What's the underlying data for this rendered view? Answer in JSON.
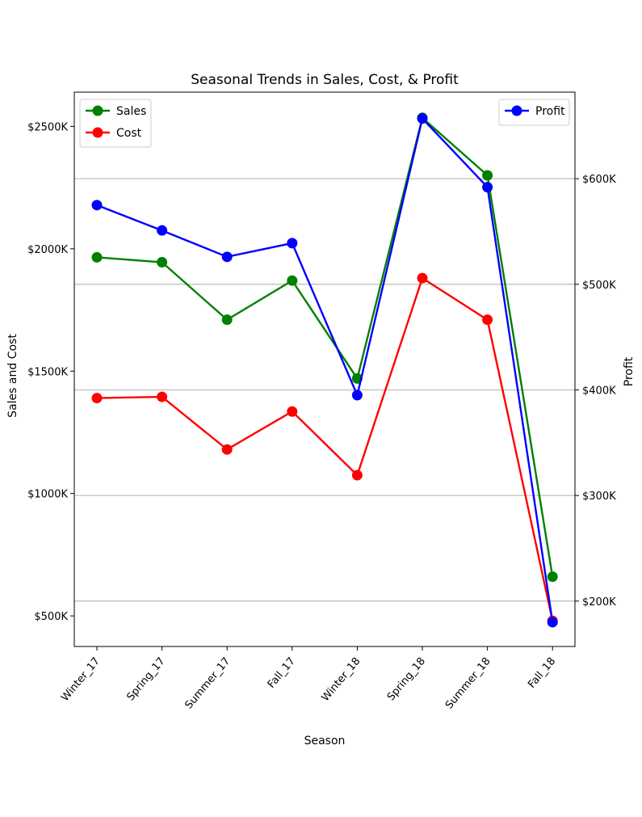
{
  "chart_data": {
    "type": "line",
    "title": "Seasonal Trends in Sales, Cost, & Profit",
    "xlabel": "Season",
    "ylabel_left": "Sales and Cost",
    "ylabel_right": "Profit",
    "categories": [
      "Winter_17",
      "Spring_17",
      "Summer_17",
      "Fall_17",
      "Winter_18",
      "Spring_18",
      "Summer_18",
      "Fall_18"
    ],
    "left_axis": {
      "ylim": [
        375,
        2640
      ],
      "ticks": [
        500,
        1000,
        1500,
        2000,
        2500
      ],
      "tick_labels": [
        "$500K",
        "$1000K",
        "$1500K",
        "$2000K",
        "$2500K"
      ],
      "unit": "thousands of dollars"
    },
    "right_axis": {
      "ylim": [
        157,
        682
      ],
      "ticks": [
        200,
        300,
        400,
        500,
        600
      ],
      "tick_labels": [
        "$200K",
        "$300K",
        "$400K",
        "$500K",
        "$600K"
      ],
      "unit": "thousands of dollars",
      "grid": true
    },
    "series": [
      {
        "name": "Sales",
        "axis": "left",
        "color": "#008000",
        "values": [
          1965,
          1945,
          1710,
          1870,
          1470,
          2535,
          2300,
          660
        ]
      },
      {
        "name": "Cost",
        "axis": "left",
        "color": "#ff0000",
        "values": [
          1390,
          1395,
          1180,
          1335,
          1075,
          1880,
          1710,
          480
        ]
      },
      {
        "name": "Profit",
        "axis": "right",
        "color": "#0000ff",
        "values": [
          575,
          551,
          526,
          539,
          395,
          657,
          592,
          180
        ]
      }
    ],
    "legend_left": {
      "placement": "top-left",
      "items": [
        "Sales",
        "Cost"
      ]
    },
    "legend_right": {
      "placement": "top-right",
      "items": [
        "Profit"
      ]
    }
  }
}
